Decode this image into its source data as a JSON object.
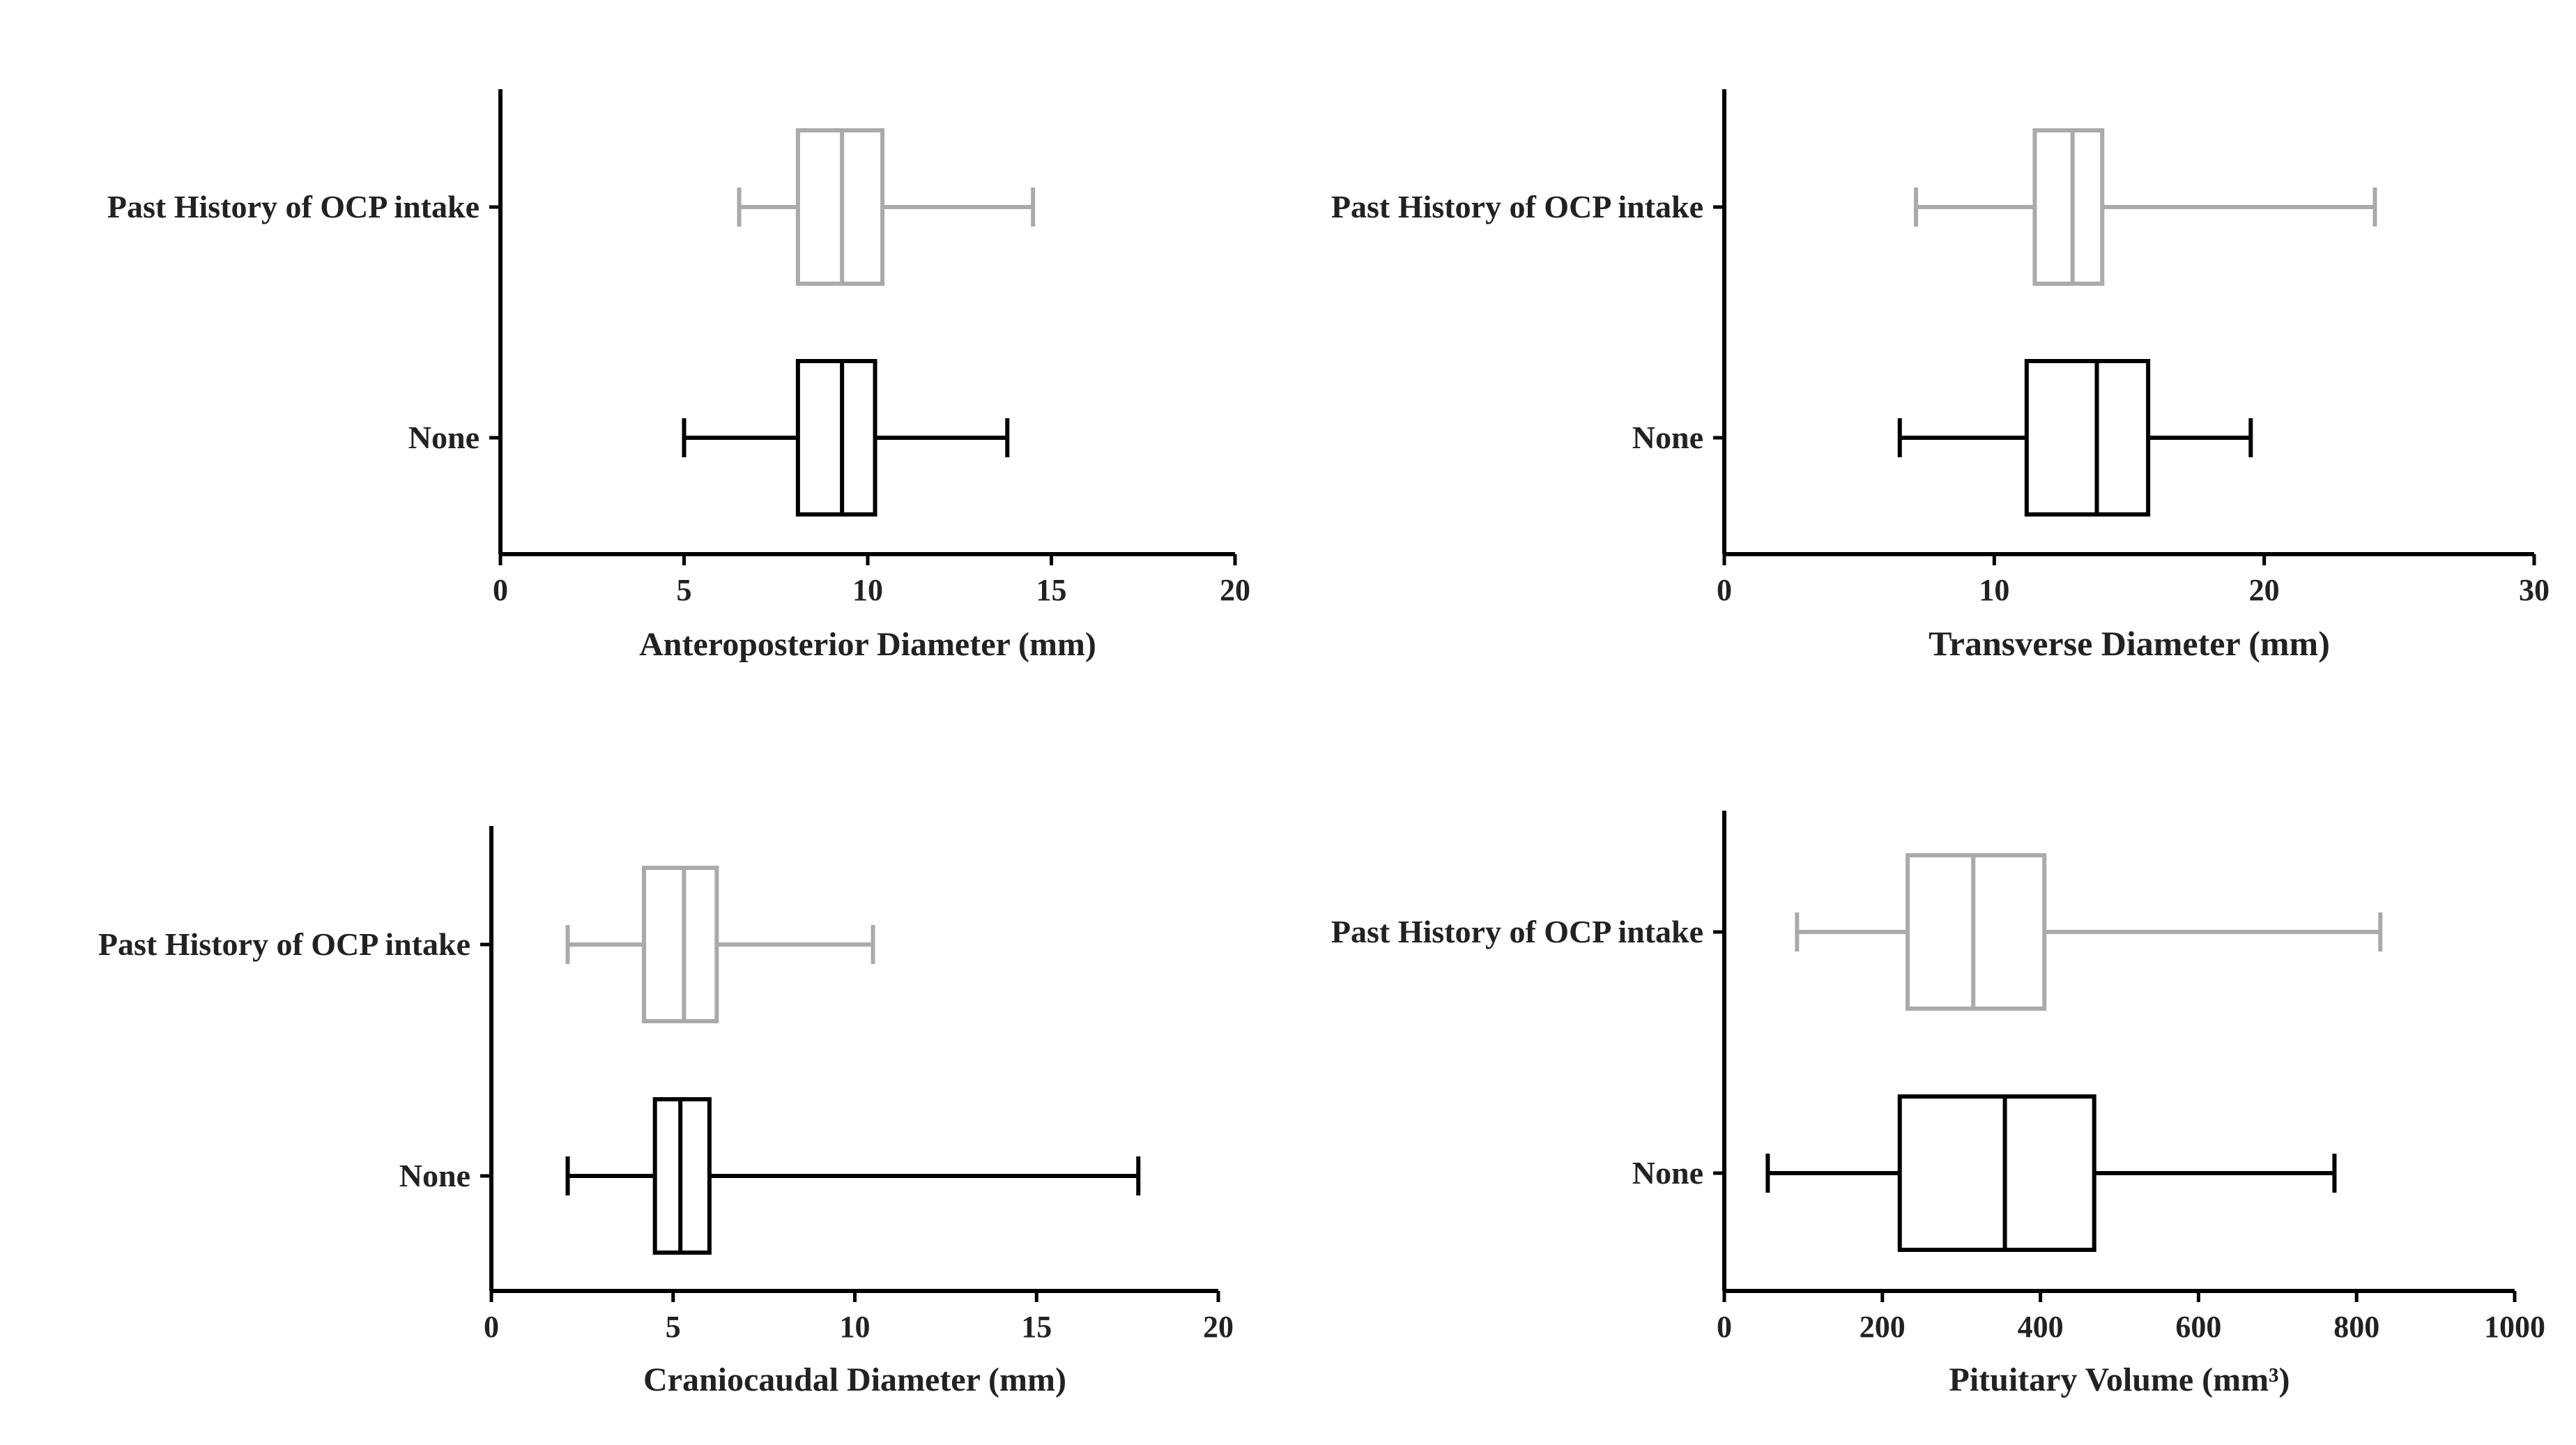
{
  "chart_data": [
    {
      "type": "box",
      "orientation": "horizontal",
      "xlabel": "Anteroposterior Diameter (mm)",
      "xlim": [
        0,
        20
      ],
      "xticks": [
        "0",
        "5",
        "10",
        "15",
        "20"
      ],
      "categories": [
        "Past History of OCP intake",
        "None"
      ],
      "series": [
        {
          "category": "Past History of OCP intake",
          "color": "#aaaaaa",
          "min": 6.5,
          "q1": 8.1,
          "median": 9.3,
          "q3": 10.4,
          "max": 14.5
        },
        {
          "category": "None",
          "color": "#000000",
          "min": 5.0,
          "q1": 8.1,
          "median": 9.3,
          "q3": 10.2,
          "max": 13.8
        }
      ]
    },
    {
      "type": "box",
      "orientation": "horizontal",
      "xlabel": "Transverse Diameter (mm)",
      "xlim": [
        0,
        30
      ],
      "xticks": [
        "0",
        "10",
        "20",
        "30"
      ],
      "categories": [
        "Past History of OCP intake",
        "None"
      ],
      "series": [
        {
          "category": "Past History of OCP intake",
          "color": "#aaaaaa",
          "min": 7.1,
          "q1": 11.5,
          "median": 12.9,
          "q3": 14.0,
          "max": 24.1
        },
        {
          "category": "None",
          "color": "#000000",
          "min": 6.5,
          "q1": 11.2,
          "median": 13.8,
          "q3": 15.7,
          "max": 19.5
        }
      ]
    },
    {
      "type": "box",
      "orientation": "horizontal",
      "xlabel": "Craniocaudal Diameter (mm)",
      "xlim": [
        0,
        20
      ],
      "xticks": [
        "0",
        "5",
        "10",
        "15",
        "20"
      ],
      "categories": [
        "Past History of OCP intake",
        "None"
      ],
      "series": [
        {
          "category": "Past History of OCP intake",
          "color": "#aaaaaa",
          "min": 2.1,
          "q1": 4.2,
          "median": 5.3,
          "q3": 6.2,
          "max": 10.5
        },
        {
          "category": "None",
          "color": "#000000",
          "min": 2.1,
          "q1": 4.5,
          "median": 5.2,
          "q3": 6.0,
          "max": 17.8
        }
      ]
    },
    {
      "type": "box",
      "orientation": "horizontal",
      "xlabel": "Pituitary Volume (mm³)",
      "xlim": [
        0,
        1000
      ],
      "xticks": [
        "0",
        "200",
        "400",
        "600",
        "800",
        "1000"
      ],
      "categories": [
        "Past History of OCP intake",
        "None"
      ],
      "series": [
        {
          "category": "Past History of OCP intake",
          "color": "#aaaaaa",
          "min": 92,
          "q1": 232,
          "median": 315,
          "q3": 405,
          "max": 830
        },
        {
          "category": "None",
          "color": "#000000",
          "min": 55,
          "q1": 222,
          "median": 355,
          "q3": 468,
          "max": 772
        }
      ]
    }
  ]
}
